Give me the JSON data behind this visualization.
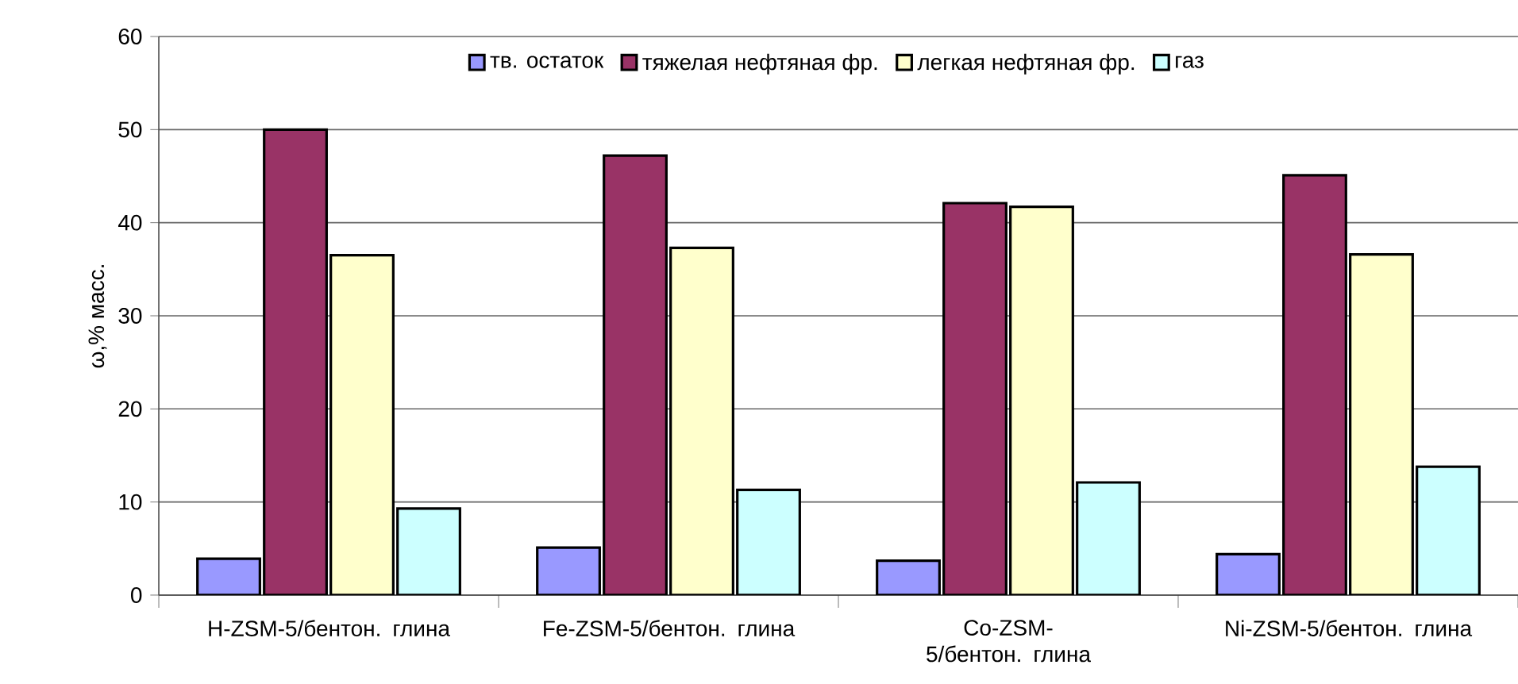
{
  "chart_data": {
    "type": "bar",
    "ylabel": "ω,% масс.",
    "categories": [
      "H-ZSM-5/бентон. глина",
      "Fe-ZSM-5/бентон. глина",
      "Co-ZSM-5/бентон. глина",
      "Ni-ZSM-5/бентон. глина"
    ],
    "series": [
      {
        "name": "тв. остаток",
        "color": "#9999ff",
        "values": [
          3.9,
          5.1,
          3.7,
          4.4
        ]
      },
      {
        "name": "тяжелая нефтяная фр.",
        "color": "#993366",
        "values": [
          50,
          47.2,
          42.1,
          45.1
        ]
      },
      {
        "name": "легкая нефтяная фр.",
        "color": "#ffffcc",
        "values": [
          36.5,
          37.3,
          41.7,
          36.6
        ]
      },
      {
        "name": "газ",
        "color": "#ccffff",
        "values": [
          9.3,
          11.3,
          12.1,
          13.8
        ]
      }
    ],
    "ylim": [
      0,
      60
    ],
    "yticks": [
      0,
      10,
      20,
      30,
      40,
      50,
      60
    ],
    "grid": "y",
    "legend": "top"
  }
}
